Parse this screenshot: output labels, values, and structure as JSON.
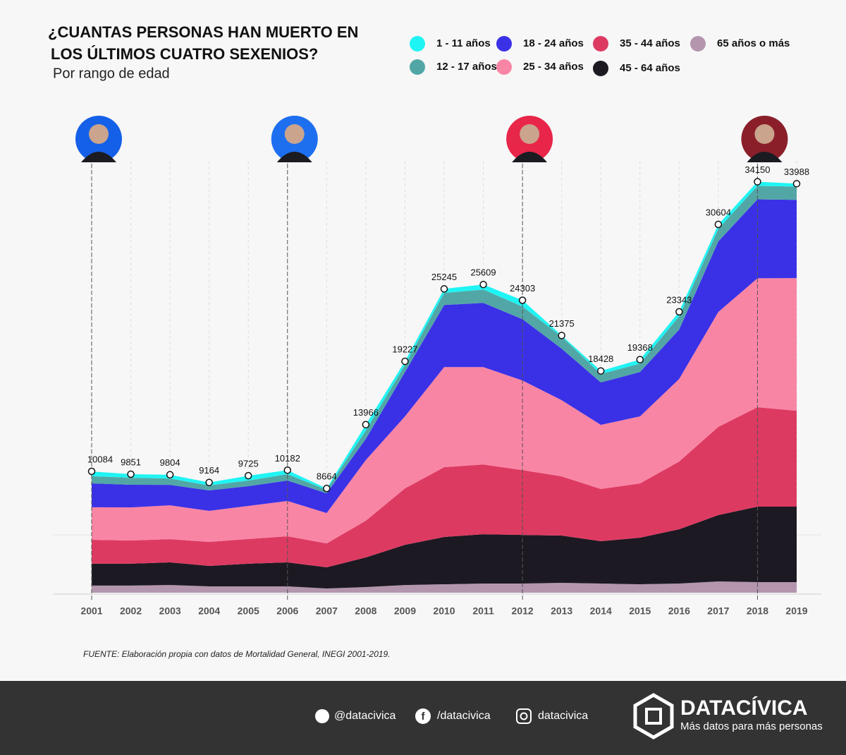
{
  "chart_data": {
    "type": "stacked-area",
    "title": [
      "¿CUANTAS PERSONAS HAN MUERTO EN",
      "LOS ÚLTIMOS CUATRO SEXENIOS?"
    ],
    "subtitle": "Por rango de edad",
    "source": "FUENTE: Elaboración propia con datos de Mortalidad General, INEGI 2001-2019.",
    "categories": [
      "2001",
      "2002",
      "2003",
      "2004",
      "2005",
      "2006",
      "2007",
      "2008",
      "2009",
      "2010",
      "2011",
      "2012",
      "2013",
      "2014",
      "2015",
      "2016",
      "2017",
      "2018",
      "2019"
    ],
    "ylim": [
      0,
      36000
    ],
    "sexenio_starts": [
      "2001",
      "2006",
      "2012",
      "2018"
    ],
    "sexenio_colors": [
      "#1560e8",
      "#1d6ff0",
      "#e8264a",
      "#8a1f2a"
    ],
    "series": [
      {
        "name": "1 - 11 años",
        "color": "#1ff4f4",
        "values": [
          400,
          290,
          310,
          250,
          400,
          330,
          110,
          490,
          300,
          340,
          420,
          520,
          100,
          260,
          330,
          370,
          360,
          350,
          240
        ]
      },
      {
        "name": "12 - 17 años",
        "color": "#52a7a6",
        "values": [
          590,
          590,
          530,
          410,
          470,
          530,
          290,
          700,
          590,
          1000,
          1110,
          1050,
          1000,
          700,
          700,
          1110,
          1050,
          1110,
          1110
        ]
      },
      {
        "name": "18 - 24 años",
        "color": "#3a31e6",
        "values": [
          1990,
          1880,
          1700,
          1700,
          1640,
          1700,
          1640,
          1760,
          3690,
          5160,
          5330,
          5100,
          4280,
          3520,
          3690,
          4100,
          5860,
          6560,
          6500
        ]
      },
      {
        "name": "25 - 34 años",
        "color": "#f985a5",
        "values": [
          2700,
          2750,
          2810,
          2580,
          2750,
          2930,
          2520,
          5040,
          5980,
          8320,
          8090,
          7440,
          6330,
          5330,
          5570,
          6860,
          9550,
          10720,
          11020
        ]
      },
      {
        "name": "35 - 44 años",
        "color": "#dd3a62",
        "values": [
          1990,
          1930,
          1930,
          1990,
          2050,
          2170,
          1990,
          3050,
          4690,
          5800,
          5800,
          5390,
          4920,
          4340,
          4510,
          5630,
          7330,
          8260,
          7970
        ]
      },
      {
        "name": "45 - 64 años",
        "color": "#1d1922",
        "values": [
          1820,
          1820,
          1880,
          1700,
          1880,
          1990,
          1760,
          2460,
          3340,
          3930,
          4100,
          4040,
          3930,
          3520,
          3870,
          4510,
          5510,
          6270,
          6270
        ]
      },
      {
        "name": "65 años o más",
        "color": "#b396ae",
        "values": [
          590,
          590,
          640,
          530,
          530,
          530,
          350,
          470,
          640,
          700,
          760,
          760,
          820,
          760,
          700,
          760,
          940,
          880,
          880
        ]
      }
    ],
    "totals": [
      10084,
      9851,
      9804,
      9164,
      9725,
      10182,
      8664,
      13966,
      19227,
      25245,
      25609,
      24303,
      21375,
      18428,
      19368,
      23343,
      30604,
      34150,
      33988
    ]
  },
  "footer": {
    "twitter": "@datacivica",
    "facebook": "/datacivica",
    "instagram": "datacivica",
    "brand": "DATACÍVICA",
    "tagline": "Más datos para más personas"
  }
}
